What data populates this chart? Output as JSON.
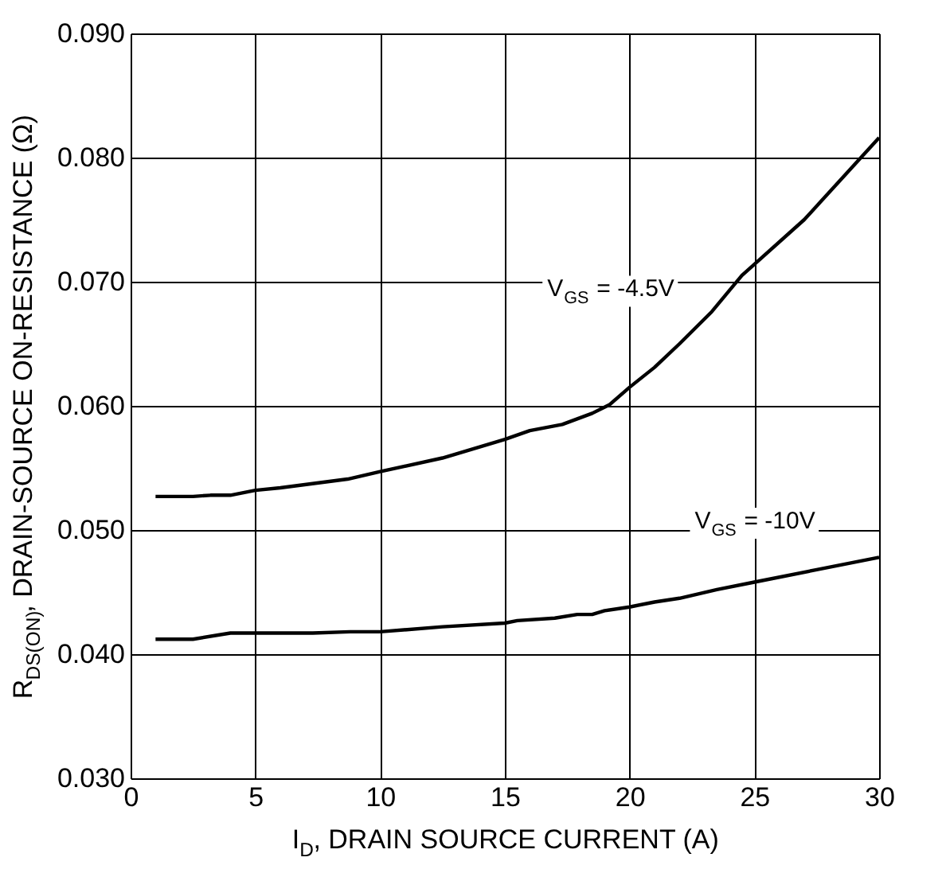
{
  "chart_data": {
    "type": "line",
    "xlabel": "I$_{D}$, DRAIN SOURCE CURRENT (A)",
    "ylabel": "R$_{DS(ON)}$, DRAIN-SOURCE ON-RESISTANCE (Ω)",
    "xlim": [
      0,
      30
    ],
    "xticks": [
      0,
      5,
      10,
      15,
      20,
      25,
      30
    ],
    "ylim": [
      0.03,
      0.09
    ],
    "yticks": [
      {
        "value": 0.03,
        "label": "0.030"
      },
      {
        "value": 0.04,
        "label": "0.040"
      },
      {
        "value": 0.05,
        "label": "0.050"
      },
      {
        "value": 0.06,
        "label": "0.060"
      },
      {
        "value": 0.07,
        "label": "0.070"
      },
      {
        "value": 0.08,
        "label": "0.080"
      },
      {
        "value": 0.09,
        "label": "0.090"
      }
    ],
    "grid": true,
    "legend": false,
    "marker": "none",
    "line_style": "solid",
    "series": [
      {
        "name": "V$_{GS}$ = -4.5V",
        "color": "#000000",
        "x": [
          1,
          2.5,
          3.2,
          4,
          5,
          6,
          8.7,
          10,
          12.5,
          15,
          16,
          17.3,
          18.5,
          19.2,
          20,
          21,
          22,
          23.3,
          24.5,
          25,
          27,
          30
        ],
        "values": [
          0.0527,
          0.0527,
          0.0528,
          0.0528,
          0.0532,
          0.0534,
          0.0541,
          0.0547,
          0.0558,
          0.0573,
          0.058,
          0.0585,
          0.0594,
          0.0601,
          0.0615,
          0.0631,
          0.065,
          0.0676,
          0.0705,
          0.0714,
          0.075,
          0.0816
        ]
      },
      {
        "name": "V$_{GS}$ = -10V",
        "color": "#000000",
        "x": [
          1,
          2.5,
          4,
          7.3,
          8.8,
          10,
          12.5,
          15,
          15.5,
          17,
          17.9,
          18.5,
          19,
          20,
          21,
          22,
          23.5,
          25,
          27.5,
          30
        ],
        "values": [
          0.0412,
          0.0412,
          0.0417,
          0.0417,
          0.0418,
          0.0418,
          0.0422,
          0.0425,
          0.0427,
          0.0429,
          0.0432,
          0.0432,
          0.0435,
          0.0438,
          0.0442,
          0.0445,
          0.0452,
          0.0458,
          0.0468,
          0.0478
        ]
      }
    ]
  }
}
